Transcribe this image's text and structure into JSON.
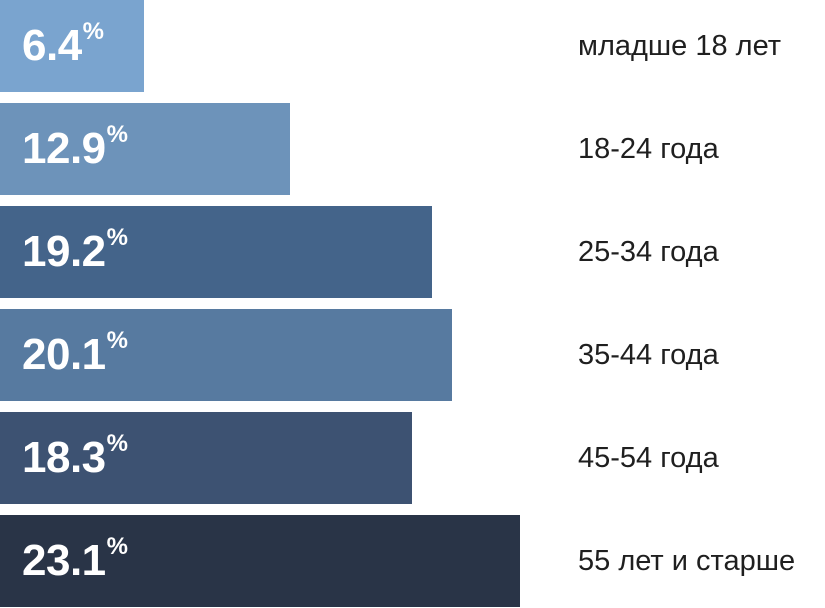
{
  "chart_data": {
    "type": "bar",
    "orientation": "horizontal",
    "categories": [
      "младше 18 лет",
      "18-24 года",
      "25-34 года",
      "35-44 года",
      "45-54 года",
      "55 лет и старше"
    ],
    "values": [
      6.4,
      12.9,
      19.2,
      20.1,
      18.3,
      23.1
    ],
    "value_labels": [
      "6.4",
      "12.9",
      "19.2",
      "20.1",
      "18.3",
      "23.1"
    ],
    "unit": "%",
    "colors": [
      "#7aa4cf",
      "#6d93ba",
      "#44648a",
      "#577aa0",
      "#3d5272",
      "#293447"
    ],
    "title": "",
    "xlabel": "",
    "ylabel": "",
    "grid": false,
    "legend": "none"
  }
}
